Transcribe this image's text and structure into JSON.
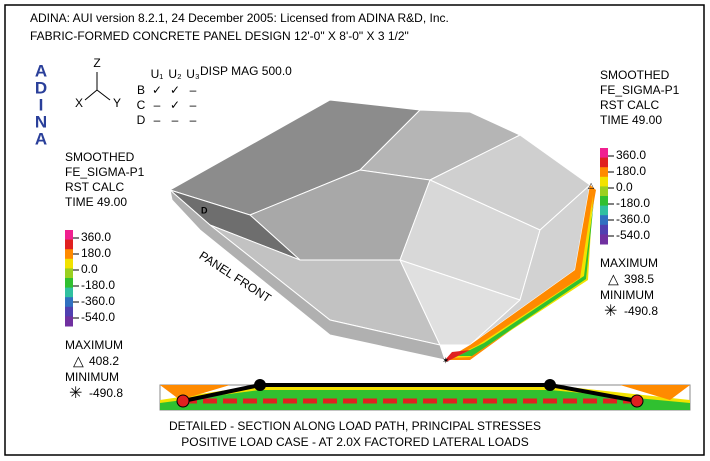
{
  "header": [
    "ADINA:  AUI version 8.2.1, 24 December 2005: Licensed from ADINA R&D, Inc.",
    "FABRIC-FORMED CONCRETE PANEL DESIGN 12'-0\" X 8'-0\" X 3 1/2\""
  ],
  "logo": [
    "A",
    "D",
    "I",
    "N",
    "A"
  ],
  "triad": {
    "z": "Z",
    "x": "X",
    "y": "Y"
  },
  "bc_table": {
    "columns": [
      "U₁",
      "U₂",
      "U₃"
    ],
    "rows": [
      {
        "label": "B",
        "cells": [
          "✓",
          "✓",
          "–"
        ]
      },
      {
        "label": "C",
        "cells": [
          "–",
          "✓",
          "–"
        ]
      },
      {
        "label": "D",
        "cells": [
          "–",
          "–",
          "–"
        ]
      }
    ]
  },
  "disp": "DISP MAG 500.0",
  "left_legend": {
    "lines": [
      "SMOOTHED",
      "FE_SIGMA-P1",
      "RST CALC",
      "TIME 49.00"
    ],
    "scale": [
      "360.0",
      "180.0",
      "0.0",
      "-180.0",
      "-360.0",
      "-540.0"
    ],
    "max_label": "MAXIMUM",
    "max": "408.2",
    "min_label": "MINIMUM",
    "min": "-490.8"
  },
  "right_legend": {
    "lines": [
      "SMOOTHED",
      "FE_SIGMA-P1",
      "RST CALC",
      "TIME 49.00"
    ],
    "scale": [
      "360.0",
      "180.0",
      "0.0",
      "-180.0",
      "-360.0",
      "-540.0"
    ],
    "max_label": "MAXIMUM",
    "max": "398.5",
    "min_label": "MINIMUM",
    "min": "-490.8"
  },
  "labels": {
    "panel_front": "PANEL FRONT",
    "node_d": "D"
  },
  "caption": [
    "DETAILED - SECTION ALONG LOAD PATH, PRINCIPAL STRESSES",
    "POSITIVE LOAD CASE - AT 2.0X FACTORED LATERAL LOADS"
  ]
}
